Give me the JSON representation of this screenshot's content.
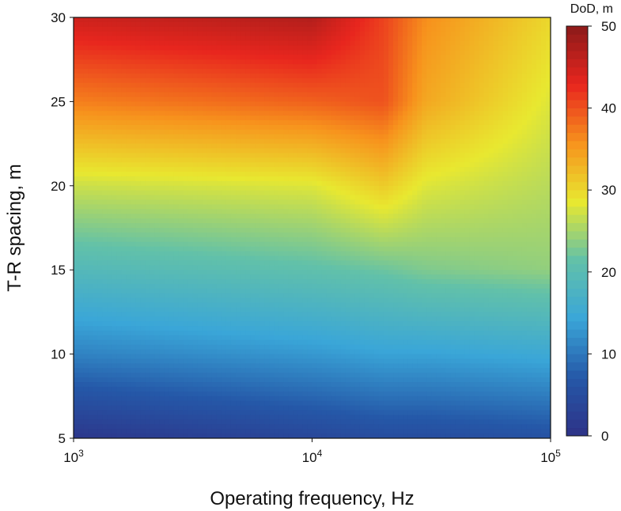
{
  "chart_data": {
    "type": "heatmap",
    "title": "",
    "xlabel": "Operating frequency, Hz",
    "ylabel": "T-R spacing, m",
    "x_scale": "log",
    "xlim": [
      1000,
      100000
    ],
    "ylim": [
      5,
      30
    ],
    "x_ticks": [
      {
        "value": 1000,
        "base": "10",
        "exp": "3"
      },
      {
        "value": 10000,
        "base": "10",
        "exp": "4"
      },
      {
        "value": 100000,
        "base": "10",
        "exp": "5"
      }
    ],
    "y_ticks": [
      "5",
      "10",
      "15",
      "20",
      "25",
      "30"
    ],
    "colorbar": {
      "label": "DoD, m",
      "range": [
        0,
        50
      ],
      "ticks": [
        "0",
        "10",
        "20",
        "30",
        "40",
        "50"
      ],
      "colors": [
        "#2e3287",
        "#2558a8",
        "#3aa6d8",
        "#62c1a9",
        "#e8e830",
        "#f7931d",
        "#e8261e",
        "#8b1a1a"
      ]
    },
    "x": [
      1000,
      10000,
      20000,
      30000,
      100000
    ],
    "y": [
      5,
      10,
      15,
      20,
      25,
      30
    ],
    "z": [
      [
        1,
        4,
        5,
        5,
        6
      ],
      [
        11,
        13,
        14,
        14,
        15
      ],
      [
        19,
        21,
        22,
        23,
        24
      ],
      [
        27,
        28,
        31,
        28,
        26
      ],
      [
        37,
        39,
        40,
        34,
        28
      ],
      [
        45,
        47,
        41,
        36,
        30
      ]
    ]
  }
}
